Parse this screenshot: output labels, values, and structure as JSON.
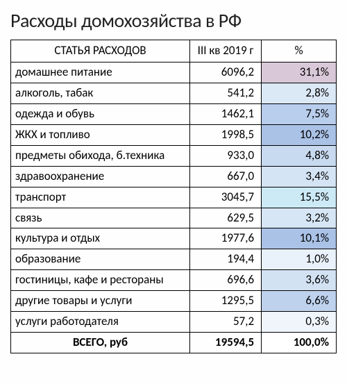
{
  "title": "Расходы домохозяйства в РФ",
  "headers": {
    "category": "СТАТЬЯ РАСХОДОВ",
    "value": "III кв 2019 г",
    "percent": "%"
  },
  "rows": [
    {
      "category": "домашнее питание",
      "value": "6096,2",
      "percent": "31,1%",
      "pct_bg": "#d9c8d8"
    },
    {
      "category": "алкоголь, табак",
      "value": "541,2",
      "percent": "2,8%",
      "pct_bg": "#dbe8f6"
    },
    {
      "category": "одежда и обувь",
      "value": "1462,1",
      "percent": "7,5%",
      "pct_bg": "#b9cdec"
    },
    {
      "category": "ЖКХ и топливо",
      "value": "1998,5",
      "percent": "10,2%",
      "pct_bg": "#aac2e6"
    },
    {
      "category": "предметы обихода, б.техника",
      "value": "933,0",
      "percent": "4,8%",
      "pct_bg": "#c8daf0"
    },
    {
      "category": "здравоохранение",
      "value": "667,0",
      "percent": "3,4%",
      "pct_bg": "#d5e4f4"
    },
    {
      "category": "транспорт",
      "value": "3045,7",
      "percent": "15,5%",
      "pct_bg": "#cceaf6"
    },
    {
      "category": "связь",
      "value": "629,5",
      "percent": "3,2%",
      "pct_bg": "#d7e6f5"
    },
    {
      "category": "культура и отдых",
      "value": "1977,6",
      "percent": "10,1%",
      "pct_bg": "#aac2e6"
    },
    {
      "category": "образование",
      "value": "194,4",
      "percent": "1,0%",
      "pct_bg": "#e9f1fa"
    },
    {
      "category": "гостиницы, кафе и рестораны",
      "value": "696,6",
      "percent": "3,6%",
      "pct_bg": "#d3e2f3"
    },
    {
      "category": "другие товары и услуги",
      "value": "1295,5",
      "percent": "6,6%",
      "pct_bg": "#bed2ee"
    },
    {
      "category": "услуги работодателя",
      "value": "57,2",
      "percent": "0,3%",
      "pct_bg": "#f0f5fc"
    }
  ],
  "total": {
    "label": "ВСЕГО, руб",
    "value": "19594,5",
    "percent": "100,0%",
    "pct_bg": "#ffffff"
  },
  "styling": {
    "type": "table",
    "title_fontsize": 28,
    "cell_fontsize": 17,
    "border_color": "#000000",
    "background_color": "#fefefe",
    "text_color": "#222222",
    "column_widths": {
      "category": "55%",
      "value": "22%",
      "percent": "23%"
    }
  }
}
